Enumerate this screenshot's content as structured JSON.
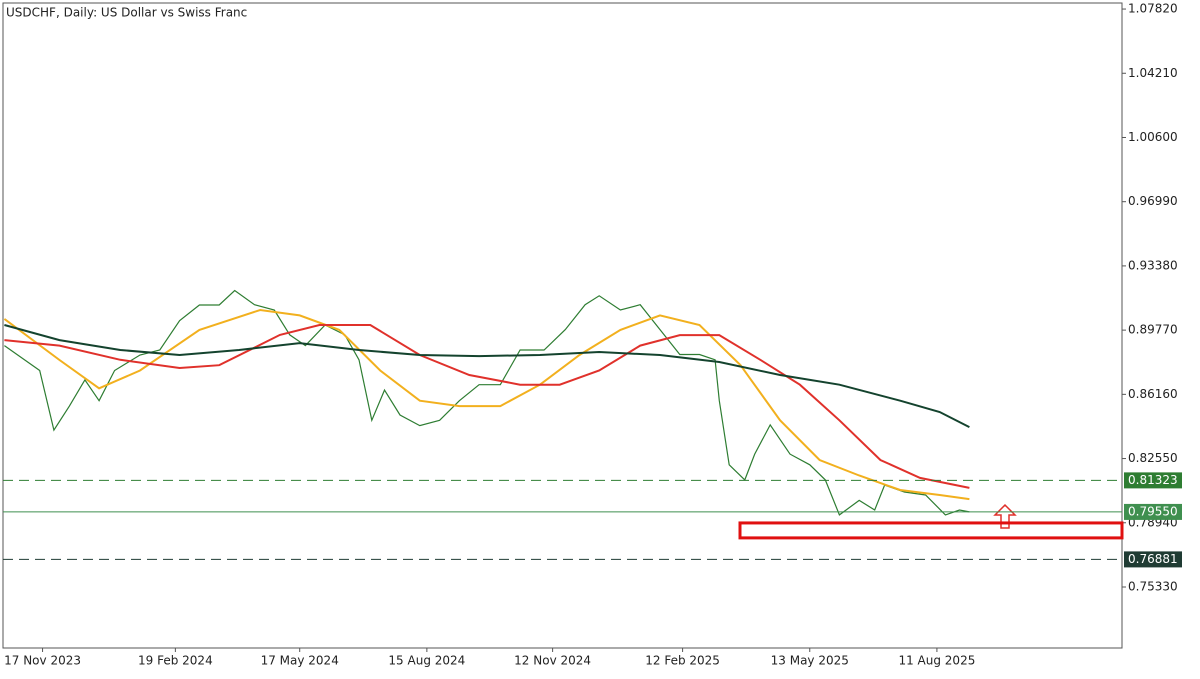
{
  "chart_data": {
    "type": "line",
    "title": "USDCHF, Daily:  US Dollar vs Swiss Franc",
    "xlim": [
      "2023-10-20",
      "2025-12-20"
    ],
    "xticks": [
      {
        "value": "2023-11-17",
        "label": "17 Nov 2023"
      },
      {
        "value": "2024-02-19",
        "label": "19 Feb 2024"
      },
      {
        "value": "2024-05-17",
        "label": "17 May 2024"
      },
      {
        "value": "2024-08-15",
        "label": "15 Aug 2024"
      },
      {
        "value": "2024-11-12",
        "label": "12 Nov 2024"
      },
      {
        "value": "2025-02-12",
        "label": "12 Feb 2025"
      },
      {
        "value": "2025-05-13",
        "label": "13 May 2025"
      },
      {
        "value": "2025-08-11",
        "label": "11 Aug 2025"
      }
    ],
    "ylim": [
      0.719,
      1.0816
    ],
    "yticks": [
      {
        "value": 1.0782,
        "label": "1.07820"
      },
      {
        "value": 1.0421,
        "label": "1.04210"
      },
      {
        "value": 1.006,
        "label": "1.00600"
      },
      {
        "value": 0.9699,
        "label": "0.96990"
      },
      {
        "value": 0.9338,
        "label": "0.93380"
      },
      {
        "value": 0.8977,
        "label": "0.89770"
      },
      {
        "value": 0.8616,
        "label": "0.86160"
      },
      {
        "value": 0.8255,
        "label": "0.82550"
      },
      {
        "value": 0.7894,
        "label": "0.78940"
      },
      {
        "value": 0.7533,
        "label": "0.75330"
      }
    ],
    "series": [
      {
        "color": "#2e7d32",
        "x": [
          "2023-10-21",
          "2023-11-15",
          "2023-11-25",
          "2023-12-06",
          "2023-12-17",
          "2023-12-27",
          "2024-01-07",
          "2024-01-25",
          "2024-02-08",
          "2024-02-22",
          "2024-03-07",
          "2024-03-21",
          "2024-04-01",
          "2024-04-15",
          "2024-04-29",
          "2024-05-10",
          "2024-05-21",
          "2024-06-04",
          "2024-06-18",
          "2024-06-28",
          "2024-07-07",
          "2024-07-16",
          "2024-07-27",
          "2024-08-10",
          "2024-08-24",
          "2024-09-07",
          "2024-09-21",
          "2024-10-06",
          "2024-10-20",
          "2024-11-06",
          "2024-11-21",
          "2024-12-05",
          "2024-12-15",
          "2024-12-30",
          "2025-01-13",
          "2025-01-27",
          "2025-02-10",
          "2025-02-24",
          "2025-03-07",
          "2025-03-10",
          "2025-03-17",
          "2025-03-28",
          "2025-04-04",
          "2025-04-15",
          "2025-04-29",
          "2025-05-13",
          "2025-05-24",
          "2025-06-03",
          "2025-06-17",
          "2025-06-28",
          "2025-07-05",
          "2025-07-19",
          "2025-08-03",
          "2025-08-17",
          "2025-08-27",
          "2025-09-03"
        ],
        "values": [
          0.889,
          0.875,
          0.8415,
          0.855,
          0.8697,
          0.858,
          0.875,
          0.8837,
          0.8865,
          0.903,
          0.9118,
          0.9118,
          0.92,
          0.912,
          0.909,
          0.895,
          0.889,
          0.9006,
          0.895,
          0.881,
          0.847,
          0.864,
          0.85,
          0.844,
          0.847,
          0.858,
          0.867,
          0.867,
          0.8865,
          0.8865,
          0.898,
          0.912,
          0.917,
          0.909,
          0.912,
          0.898,
          0.884,
          0.884,
          0.881,
          0.858,
          0.822,
          0.8135,
          0.828,
          0.8444,
          0.828,
          0.822,
          0.8135,
          0.7938,
          0.802,
          0.7966,
          0.8106,
          0.8067,
          0.805,
          0.7938,
          0.7966,
          0.7955
        ]
      },
      {
        "color": "#f2b01e",
        "x": [
          "2023-10-21",
          "2023-11-29",
          "2023-12-27",
          "2024-01-25",
          "2024-03-07",
          "2024-04-19",
          "2024-05-17",
          "2024-06-14",
          "2024-07-13",
          "2024-08-10",
          "2024-09-07",
          "2024-10-06",
          "2024-11-03",
          "2024-12-01",
          "2024-12-30",
          "2025-01-27",
          "2025-02-24",
          "2025-03-25",
          "2025-04-22",
          "2025-05-20",
          "2025-06-17",
          "2025-07-16",
          "2025-08-13",
          "2025-09-03"
        ],
        "values": [
          0.904,
          0.8809,
          0.865,
          0.875,
          0.8978,
          0.909,
          0.906,
          0.8978,
          0.875,
          0.858,
          0.855,
          0.855,
          0.867,
          0.8837,
          0.8978,
          0.906,
          0.9006,
          0.878,
          0.847,
          0.8247,
          0.816,
          0.8078,
          0.805,
          0.8027
        ]
      },
      {
        "color": "#e0312b",
        "x": [
          "2023-10-21",
          "2023-11-29",
          "2024-01-11",
          "2024-02-22",
          "2024-03-21",
          "2024-05-03",
          "2024-05-31",
          "2024-07-06",
          "2024-08-10",
          "2024-09-14",
          "2024-10-20",
          "2024-11-17",
          "2024-12-15",
          "2025-01-13",
          "2025-02-10",
          "2025-03-10",
          "2025-04-08",
          "2025-05-06",
          "2025-06-03",
          "2025-07-02",
          "2025-07-30",
          "2025-09-03"
        ],
        "values": [
          0.8921,
          0.889,
          0.881,
          0.8764,
          0.878,
          0.895,
          0.9006,
          0.9006,
          0.8837,
          0.8725,
          0.867,
          0.867,
          0.875,
          0.889,
          0.8949,
          0.8949,
          0.881,
          0.867,
          0.847,
          0.8247,
          0.8146,
          0.809
        ]
      },
      {
        "color": "#14432e",
        "x": [
          "2023-10-21",
          "2023-11-29",
          "2024-01-11",
          "2024-02-22",
          "2024-04-04",
          "2024-05-17",
          "2024-06-28",
          "2024-08-10",
          "2024-09-21",
          "2024-11-03",
          "2024-12-15",
          "2025-01-27",
          "2025-03-10",
          "2025-04-22",
          "2025-06-03",
          "2025-07-16",
          "2025-08-13",
          "2025-09-03"
        ],
        "values": [
          0.9006,
          0.8921,
          0.8865,
          0.8837,
          0.8865,
          0.8904,
          0.8865,
          0.8837,
          0.8831,
          0.8837,
          0.8854,
          0.8837,
          0.8798,
          0.8725,
          0.867,
          0.858,
          0.8517,
          0.8432
        ]
      }
    ],
    "levels": [
      {
        "value": 0.81323,
        "color": "#2e7d32",
        "dashed": true
      },
      {
        "value": {
          "value": 0.7955,
          "label": "0.79550"
        },
        "color": "#3f8f4f",
        "dashed": false
      },
      {
        "value": 0.76881,
        "color": "#1f3b33",
        "dashed": true
      }
    ],
    "zone": [
      0.7809,
      0.7893
    ],
    "zone_color": "#e01010"
  }
}
